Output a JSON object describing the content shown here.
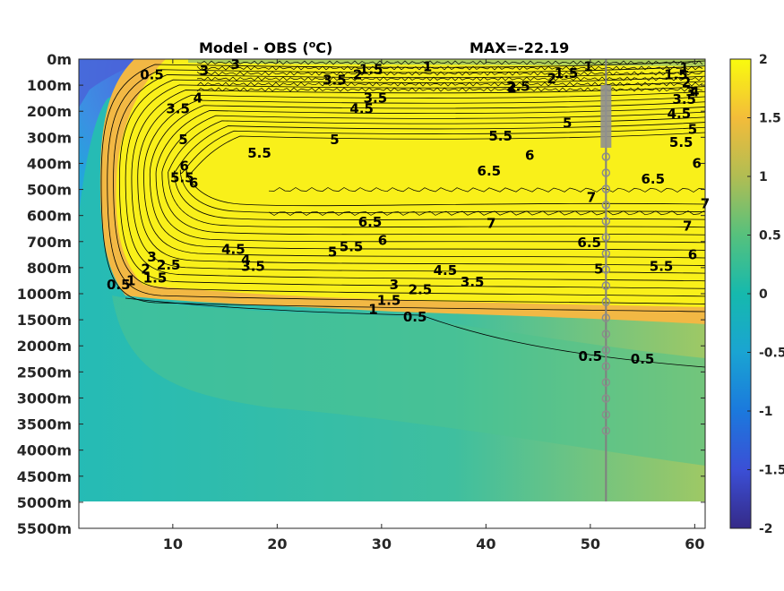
{
  "chart_data": {
    "type": "heatmap",
    "title_left": "Model - OBS (",
    "title_left_sup": "o",
    "title_left_end": "C)",
    "title_right": "MAX=-22.19",
    "x_ticks": [
      10,
      20,
      30,
      40,
      50,
      60
    ],
    "xlim": [
      1,
      61
    ],
    "y_tick_labels": [
      "0m",
      "100m",
      "200m",
      "300m",
      "400m",
      "500m",
      "600m",
      "700m",
      "800m",
      "1000m",
      "1500m",
      "2000m",
      "2500m",
      "3000m",
      "3500m",
      "4000m",
      "4500m",
      "5000m",
      "5500m"
    ],
    "data_bottom_depth": "5000m",
    "colorbar": {
      "ticks": [
        "2",
        "1.5",
        "1",
        "0.5",
        "0",
        "-0.5",
        "-1",
        "-1.5",
        "-2"
      ],
      "clim": [
        -2,
        2
      ],
      "colormap": "parula"
    },
    "contour_levels": [
      0.5,
      1,
      1.5,
      2,
      2.5,
      3,
      3.5,
      4,
      4.5,
      5,
      5.5,
      6,
      6.5,
      7
    ],
    "contour_labels": [
      {
        "text": "0.5",
        "x": 33.2,
        "y": 9.9
      },
      {
        "text": "1",
        "x": 29.2,
        "y": 9.6
      },
      {
        "text": "1.5",
        "x": 30.7,
        "y": 9.25
      },
      {
        "text": "2.5",
        "x": 33.7,
        "y": 8.85
      },
      {
        "text": "3",
        "x": 31.2,
        "y": 8.65
      },
      {
        "text": "3.5",
        "x": 38.7,
        "y": 8.55
      },
      {
        "text": "4.5",
        "x": 36.1,
        "y": 8.1
      },
      {
        "text": "0.5",
        "x": 4.8,
        "y": 8.65
      },
      {
        "text": "1",
        "x": 6.0,
        "y": 8.5
      },
      {
        "text": "1.5",
        "x": 8.3,
        "y": 8.4
      },
      {
        "text": "2",
        "x": 7.4,
        "y": 8.05
      },
      {
        "text": "2.5",
        "x": 9.6,
        "y": 7.9
      },
      {
        "text": "3",
        "x": 8.0,
        "y": 7.6
      },
      {
        "text": "3.5",
        "x": 17.7,
        "y": 7.95
      },
      {
        "text": "4",
        "x": 17.0,
        "y": 7.7
      },
      {
        "text": "4.5",
        "x": 15.8,
        "y": 7.3
      },
      {
        "text": "5",
        "x": 25.3,
        "y": 7.4
      },
      {
        "text": "5.5",
        "x": 27.1,
        "y": 7.2
      },
      {
        "text": "6",
        "x": 30.1,
        "y": 6.95
      },
      {
        "text": "6.5",
        "x": 28.9,
        "y": 6.25
      },
      {
        "text": "7",
        "x": 40.5,
        "y": 6.3
      },
      {
        "text": "5.5",
        "x": 18.3,
        "y": 3.6
      },
      {
        "text": "5",
        "x": 25.5,
        "y": 3.1
      },
      {
        "text": "5.5",
        "x": 41.4,
        "y": 2.95
      },
      {
        "text": "6",
        "x": 44.2,
        "y": 3.7
      },
      {
        "text": "6.5",
        "x": 40.3,
        "y": 4.3
      },
      {
        "text": "7",
        "x": 50.1,
        "y": 5.3
      },
      {
        "text": "5",
        "x": 47.8,
        "y": 2.45
      },
      {
        "text": "6",
        "x": 11.1,
        "y": 4.1
      },
      {
        "text": "5.5",
        "x": 10.9,
        "y": 4.55
      },
      {
        "text": "5",
        "x": 11.0,
        "y": 3.1
      },
      {
        "text": "6",
        "x": 12.0,
        "y": 4.75
      },
      {
        "text": "4",
        "x": 12.4,
        "y": 1.5
      },
      {
        "text": "3.5",
        "x": 10.5,
        "y": 1.9
      },
      {
        "text": "4.5",
        "x": 28.1,
        "y": 1.9
      },
      {
        "text": "3.5",
        "x": 29.4,
        "y": 1.5
      },
      {
        "text": "3.5",
        "x": 25.5,
        "y": 0.8
      },
      {
        "text": "2",
        "x": 27.7,
        "y": 0.6
      },
      {
        "text": "1.5",
        "x": 29.0,
        "y": 0.4
      },
      {
        "text": "1",
        "x": 34.4,
        "y": 0.3
      },
      {
        "text": "2.5",
        "x": 43.1,
        "y": 1.05
      },
      {
        "text": "2",
        "x": 42.5,
        "y": 1.1
      },
      {
        "text": "2",
        "x": 46.3,
        "y": 0.75
      },
      {
        "text": "1.5",
        "x": 47.7,
        "y": 0.55
      },
      {
        "text": "1",
        "x": 49.8,
        "y": 0.3
      },
      {
        "text": "4.5",
        "x": 58.5,
        "y": 2.1
      },
      {
        "text": "5",
        "x": 59.8,
        "y": 2.7
      },
      {
        "text": "5.5",
        "x": 58.7,
        "y": 3.2
      },
      {
        "text": "6",
        "x": 60.2,
        "y": 4.0
      },
      {
        "text": "6.5",
        "x": 56.0,
        "y": 4.6
      },
      {
        "text": "7",
        "x": 61.0,
        "y": 5.55
      },
      {
        "text": "7",
        "x": 59.3,
        "y": 6.4
      },
      {
        "text": "6.5",
        "x": 49.9,
        "y": 7.05
      },
      {
        "text": "6",
        "x": 59.8,
        "y": 7.5
      },
      {
        "text": "5.5",
        "x": 56.8,
        "y": 7.95
      },
      {
        "text": "5",
        "x": 50.8,
        "y": 8.05
      },
      {
        "text": "0.5",
        "x": 50.0,
        "y": 11.4
      },
      {
        "text": "0.5",
        "x": 55.0,
        "y": 11.5
      },
      {
        "text": "3",
        "x": 16.0,
        "y": 0.2
      },
      {
        "text": "3",
        "x": 13.0,
        "y": 0.45
      },
      {
        "text": "0.5",
        "x": 8.0,
        "y": 0.6
      },
      {
        "text": "1",
        "x": 59.0,
        "y": 0.35
      },
      {
        "text": "1.5",
        "x": 58.2,
        "y": 0.6
      },
      {
        "text": "2",
        "x": 59.2,
        "y": 0.9
      },
      {
        "text": "3",
        "x": 59.6,
        "y": 1.25
      },
      {
        "text": "3.5",
        "x": 59.0,
        "y": 1.55
      },
      {
        "text": "4",
        "x": 60.0,
        "y": 1.25
      }
    ]
  }
}
